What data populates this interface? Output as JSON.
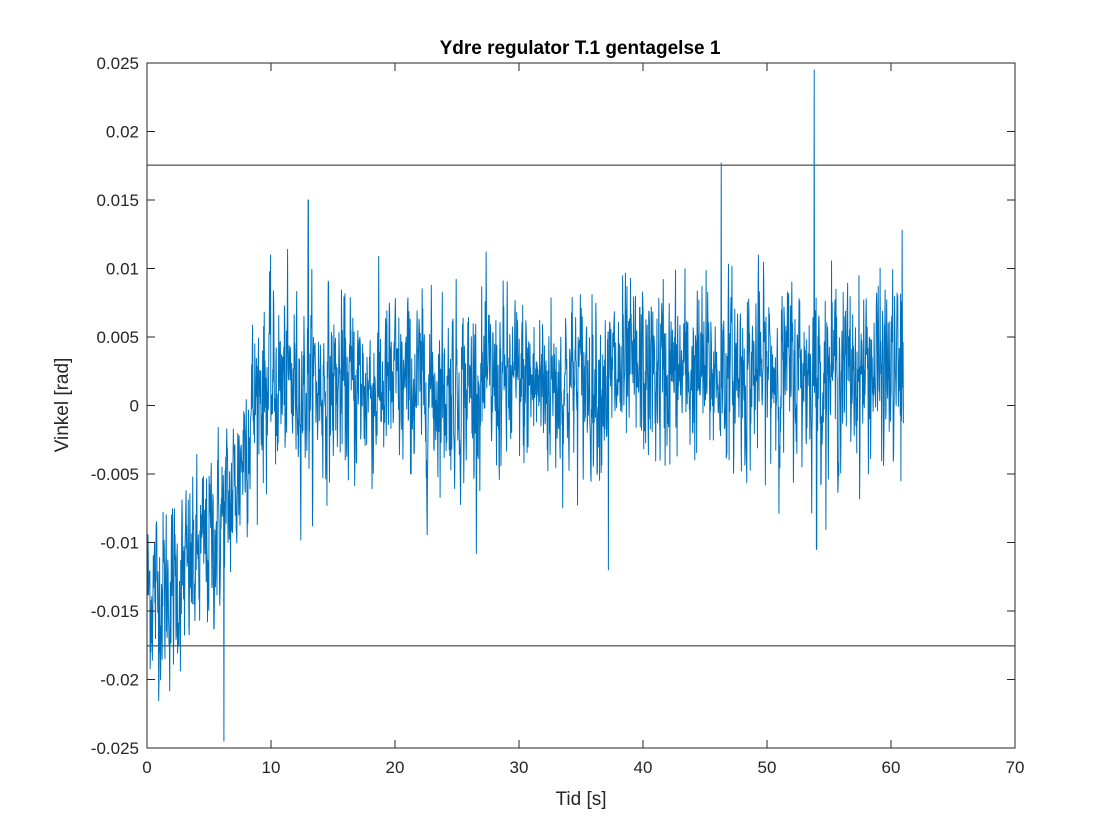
{
  "chart_data": {
    "type": "line",
    "title": "Ydre regulator T.1 gentagelse 1",
    "xlabel": "Tid [s]",
    "ylabel": "Vinkel [rad]",
    "xlim": [
      0,
      70
    ],
    "ylim": [
      -0.025,
      0.025
    ],
    "x_ticks": [
      0,
      10,
      20,
      30,
      40,
      50,
      60,
      70
    ],
    "x_tick_labels": [
      "0",
      "10",
      "20",
      "30",
      "40",
      "50",
      "60",
      "70"
    ],
    "y_ticks": [
      0.025,
      0.02,
      0.015,
      0.01,
      0.005,
      0,
      -0.005,
      -0.01,
      -0.015,
      -0.02,
      -0.025
    ],
    "y_tick_labels": [
      "0.025",
      "0.02",
      "0.015",
      "0.01",
      "0.005",
      "0",
      "-0.005",
      "-0.01",
      "-0.015",
      "-0.02",
      "-0.025"
    ],
    "grid": false,
    "series": [
      {
        "color": "#0072BD",
        "x_start": 0,
        "x_end": 61,
        "trend": [
          [
            0,
            -0.0135
          ],
          [
            2,
            -0.0135
          ],
          [
            4,
            -0.0115
          ],
          [
            6,
            -0.0085
          ],
          [
            7,
            -0.0065
          ],
          [
            8,
            -0.002
          ],
          [
            9,
            0.0015
          ],
          [
            12,
            0.0015
          ],
          [
            20,
            0.0012
          ],
          [
            30,
            0.0014
          ],
          [
            35,
            0.0018
          ],
          [
            40,
            0.0022
          ],
          [
            50,
            0.0025
          ],
          [
            61,
            0.0025
          ]
        ],
        "noise_std": 0.0032,
        "peaks": [
          [
            6.2,
            -0.0245
          ],
          [
            13.0,
            0.015
          ],
          [
            46.3,
            0.0177
          ],
          [
            53.8,
            0.0245
          ],
          [
            54.0,
            -0.0105
          ],
          [
            37.2,
            -0.012
          ],
          [
            60.9,
            0.0128
          ],
          [
            60.8,
            -0.0055
          ]
        ]
      },
      {
        "color": "#262626",
        "x": [
          0,
          70
        ],
        "y": [
          0.01755,
          0.01755
        ]
      },
      {
        "color": "#262626",
        "x": [
          0,
          70
        ],
        "y": [
          -0.01755,
          -0.01755
        ]
      }
    ]
  }
}
